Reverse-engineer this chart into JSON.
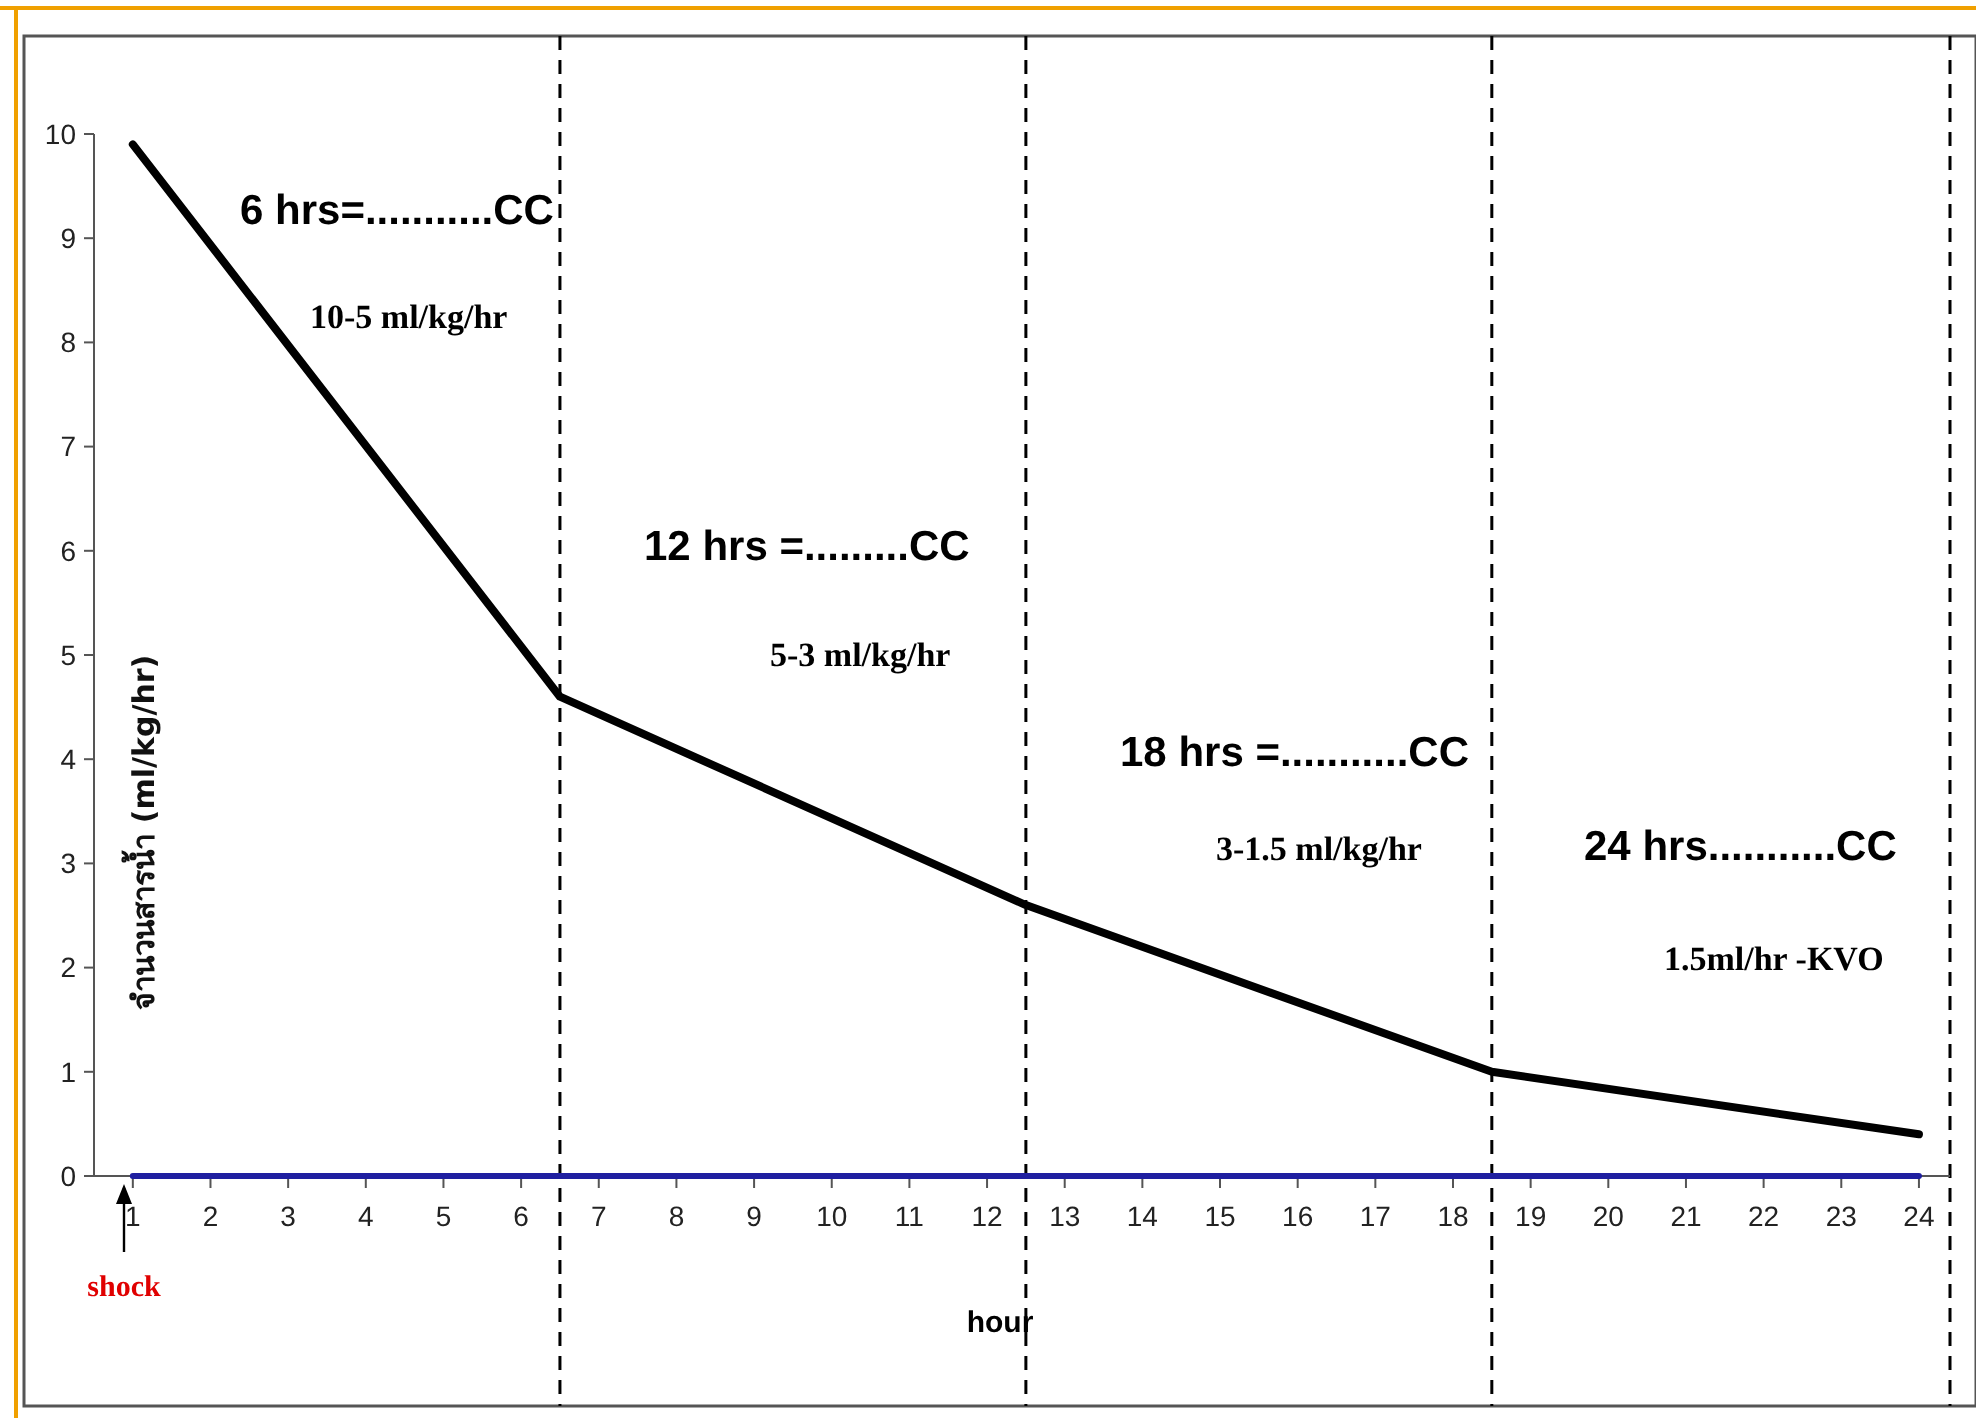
{
  "chart_data": {
    "type": "line",
    "xlabel": "hour",
    "ylabel": "จำนวนสารน้ำ (ml/kg/hr)",
    "xlim": [
      0.5,
      24.4
    ],
    "ylim": [
      0,
      10
    ],
    "xticks": [
      1,
      2,
      3,
      4,
      5,
      6,
      7,
      8,
      9,
      10,
      11,
      12,
      13,
      14,
      15,
      16,
      17,
      18,
      19,
      20,
      21,
      22,
      23,
      24
    ],
    "yticks": [
      0,
      1,
      2,
      3,
      4,
      5,
      6,
      7,
      8,
      9,
      10
    ],
    "grid": false,
    "marker": "none",
    "line_style": "solid",
    "series": [
      {
        "color": "#000000",
        "x": [
          1,
          6.5,
          12.5,
          18.5,
          24
        ],
        "values": [
          9.9,
          4.6,
          2.6,
          1.0,
          0.4
        ]
      },
      {
        "color": "#1f1fa0",
        "x": [
          1,
          24
        ],
        "values": [
          0,
          0
        ]
      }
    ],
    "ref_lines": [
      {
        "axis": "x",
        "value": 6.5,
        "color": "#000000",
        "line_style": "dashed"
      },
      {
        "axis": "x",
        "value": 12.5,
        "color": "#000000",
        "line_style": "dashed"
      },
      {
        "axis": "x",
        "value": 18.5,
        "color": "#000000",
        "line_style": "dashed"
      },
      {
        "axis": "x",
        "value": 24.4,
        "color": "#000000",
        "line_style": "dashed"
      }
    ],
    "annotations": [
      "6 hrs=...........CC",
      "10-5 ml/kg/hr",
      "12 hrs  =.........CC",
      "5-3 ml/kg/hr",
      "18 hrs =...........CC",
      "3-1.5 ml/kg/hr",
      "24 hrs...........CC",
      "1.5ml/hr -KVO",
      "shock"
    ]
  }
}
